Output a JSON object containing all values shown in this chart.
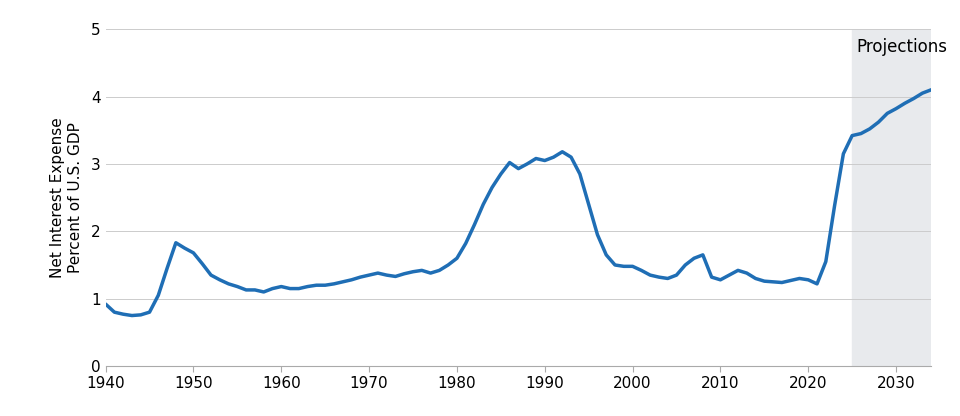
{
  "years": [
    1940,
    1941,
    1942,
    1943,
    1944,
    1945,
    1946,
    1947,
    1948,
    1949,
    1950,
    1951,
    1952,
    1953,
    1954,
    1955,
    1956,
    1957,
    1958,
    1959,
    1960,
    1961,
    1962,
    1963,
    1964,
    1965,
    1966,
    1967,
    1968,
    1969,
    1970,
    1971,
    1972,
    1973,
    1974,
    1975,
    1976,
    1977,
    1978,
    1979,
    1980,
    1981,
    1982,
    1983,
    1984,
    1985,
    1986,
    1987,
    1988,
    1989,
    1990,
    1991,
    1992,
    1993,
    1994,
    1995,
    1996,
    1997,
    1998,
    1999,
    2000,
    2001,
    2002,
    2003,
    2004,
    2005,
    2006,
    2007,
    2008,
    2009,
    2010,
    2011,
    2012,
    2013,
    2014,
    2015,
    2016,
    2017,
    2018,
    2019,
    2020,
    2021,
    2022,
    2023,
    2024,
    2025,
    2026,
    2027,
    2028,
    2029,
    2030,
    2031,
    2032,
    2033,
    2034
  ],
  "values": [
    0.92,
    0.8,
    0.77,
    0.75,
    0.76,
    0.8,
    1.05,
    1.45,
    1.83,
    1.75,
    1.68,
    1.52,
    1.35,
    1.28,
    1.22,
    1.18,
    1.13,
    1.13,
    1.1,
    1.15,
    1.18,
    1.15,
    1.15,
    1.18,
    1.2,
    1.2,
    1.22,
    1.25,
    1.28,
    1.32,
    1.35,
    1.38,
    1.35,
    1.33,
    1.37,
    1.4,
    1.42,
    1.38,
    1.42,
    1.5,
    1.6,
    1.82,
    2.1,
    2.4,
    2.65,
    2.85,
    3.02,
    2.93,
    3.0,
    3.08,
    3.05,
    3.1,
    3.18,
    3.1,
    2.85,
    2.4,
    1.95,
    1.65,
    1.5,
    1.48,
    1.48,
    1.42,
    1.35,
    1.32,
    1.3,
    1.35,
    1.5,
    1.6,
    1.65,
    1.32,
    1.28,
    1.35,
    1.42,
    1.38,
    1.3,
    1.26,
    1.25,
    1.24,
    1.27,
    1.3,
    1.28,
    1.22,
    1.55,
    2.38,
    3.15,
    3.42,
    3.45,
    3.52,
    3.62,
    3.75,
    3.82,
    3.9,
    3.97,
    4.05,
    4.1
  ],
  "projection_start_year": 2025,
  "line_color": "#1f6eb5",
  "projection_bg_color": "#e8eaed",
  "ylabel": "Net Interest Expense\nPercent of U.S. GDP",
  "ylim": [
    0,
    5
  ],
  "xlim": [
    1940,
    2034
  ],
  "yticks": [
    0,
    1,
    2,
    3,
    4,
    5
  ],
  "xticks": [
    1940,
    1950,
    1960,
    1970,
    1980,
    1990,
    2000,
    2010,
    2020,
    2030
  ],
  "projection_label": "Projections",
  "line_width": 2.5,
  "font_size_ticks": 11,
  "font_size_ylabel": 11,
  "font_size_projection": 12
}
